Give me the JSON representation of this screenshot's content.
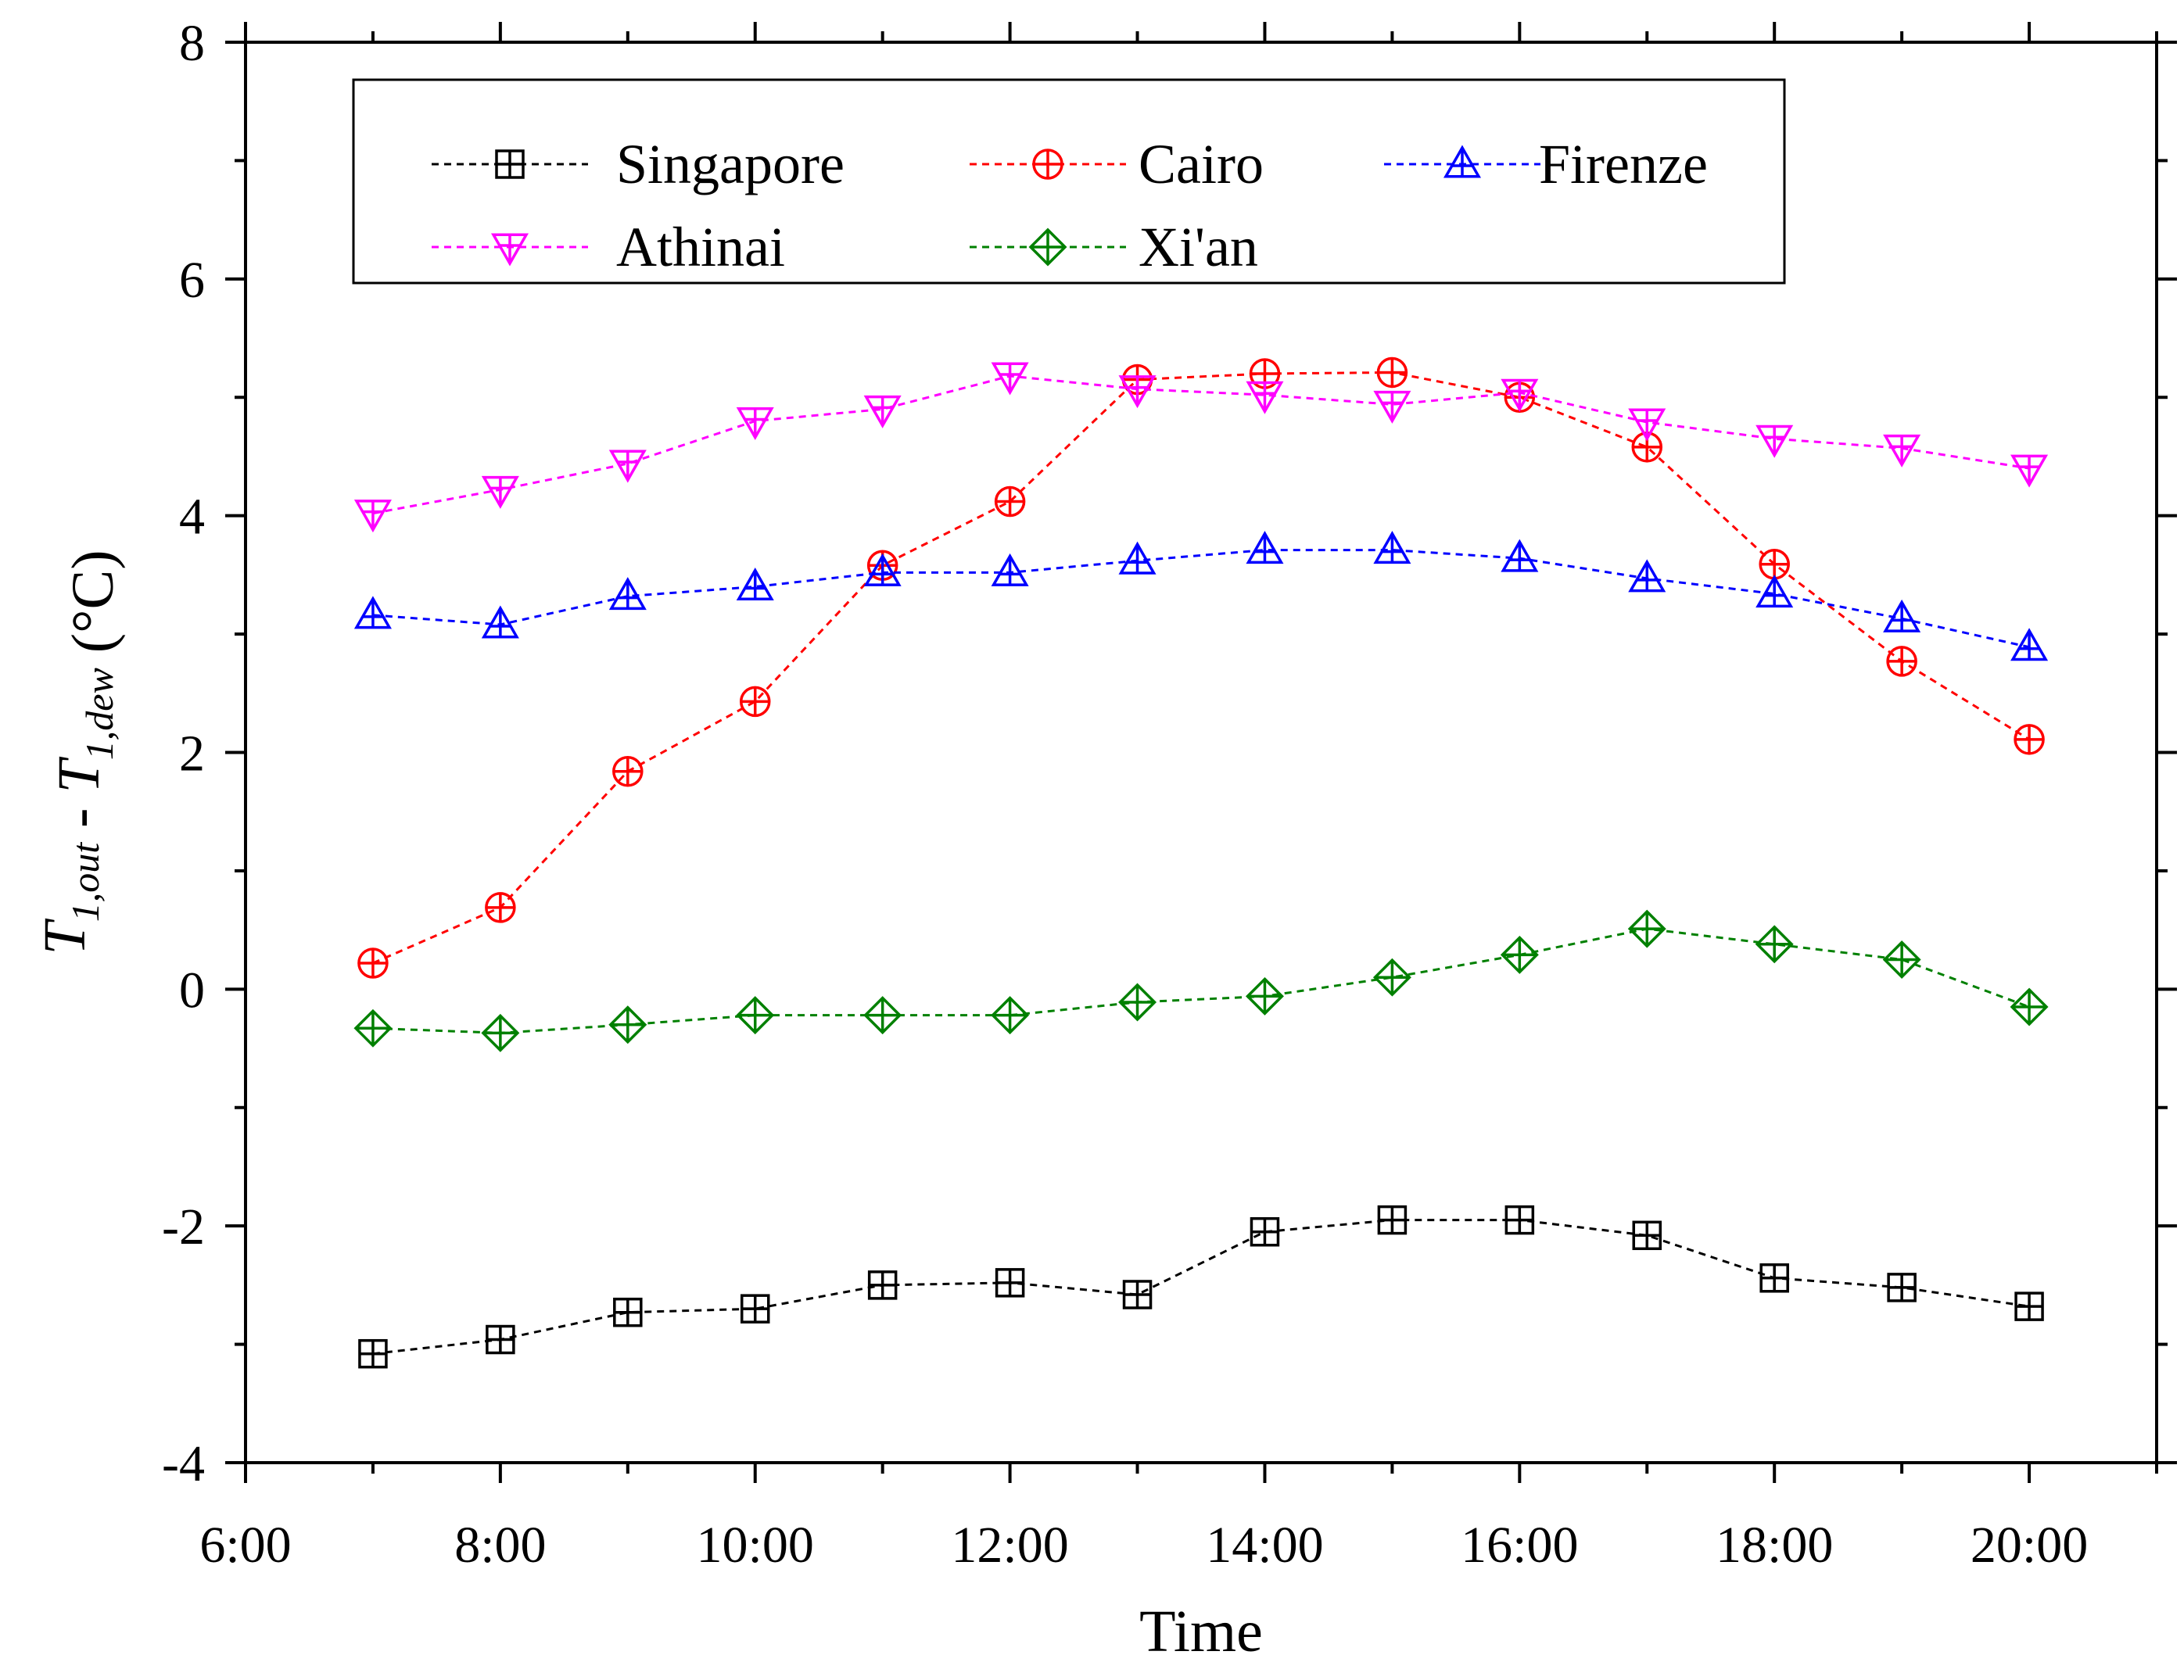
{
  "chart_data": {
    "type": "line",
    "title": "",
    "xlabel": "Time",
    "ylabel": {
      "parts": [
        {
          "text": "T",
          "italic": true
        },
        {
          "text": "1,out",
          "italic": true,
          "sub": true
        },
        {
          "text": " - ",
          "italic": false
        },
        {
          "text": "T",
          "italic": true
        },
        {
          "text": "1,dew",
          "italic": true,
          "sub": true
        },
        {
          "text": " (°C)",
          "italic": false
        }
      ]
    },
    "x": [
      7,
      8,
      9,
      10,
      11,
      12,
      13,
      14,
      15,
      16,
      17,
      18,
      19,
      20
    ],
    "xlim": [
      6,
      21
    ],
    "ylim": [
      -4,
      8
    ],
    "xticks": [
      {
        "value": 6,
        "label": "6:00"
      },
      {
        "value": 8,
        "label": "8:00"
      },
      {
        "value": 10,
        "label": "10:00"
      },
      {
        "value": 12,
        "label": "12:00"
      },
      {
        "value": 14,
        "label": "14:00"
      },
      {
        "value": 16,
        "label": "16:00"
      },
      {
        "value": 18,
        "label": "18:00"
      },
      {
        "value": 20,
        "label": "20:00"
      }
    ],
    "yticks": [
      {
        "value": -4,
        "label": "-4"
      },
      {
        "value": -2,
        "label": "-2"
      },
      {
        "value": 0,
        "label": "0"
      },
      {
        "value": 2,
        "label": "2"
      },
      {
        "value": 4,
        "label": "4"
      },
      {
        "value": 6,
        "label": "6"
      },
      {
        "value": 8,
        "label": "8"
      }
    ],
    "grid": false,
    "legend_position": "top",
    "series": [
      {
        "name": "Singapore",
        "color": "#000000",
        "marker": "square-plus",
        "values": [
          -3.08,
          -2.96,
          -2.73,
          -2.7,
          -2.5,
          -2.48,
          -2.58,
          -2.05,
          -1.95,
          -1.95,
          -2.08,
          -2.44,
          -2.52,
          -2.68
        ]
      },
      {
        "name": "Cairo",
        "color": "#ff0000",
        "marker": "circle-plus",
        "values": [
          0.22,
          0.69,
          1.84,
          2.43,
          3.58,
          4.12,
          5.15,
          5.2,
          5.21,
          5.0,
          4.58,
          3.59,
          2.77,
          2.11
        ]
      },
      {
        "name": "Firenze",
        "color": "#0000ff",
        "marker": "triangle-up",
        "values": [
          3.16,
          3.08,
          3.32,
          3.4,
          3.52,
          3.52,
          3.62,
          3.71,
          3.71,
          3.64,
          3.47,
          3.34,
          3.13,
          2.89
        ]
      },
      {
        "name": "Athinai",
        "color": "#ff00ff",
        "marker": "triangle-down",
        "values": [
          4.02,
          4.22,
          4.44,
          4.8,
          4.9,
          5.18,
          5.07,
          5.02,
          4.94,
          5.04,
          4.79,
          4.65,
          4.57,
          4.4
        ]
      },
      {
        "name": "Xi'an",
        "color": "#008000",
        "marker": "diamond-plus",
        "values": [
          -0.33,
          -0.37,
          -0.3,
          -0.22,
          -0.22,
          -0.22,
          -0.11,
          -0.06,
          0.1,
          0.29,
          0.51,
          0.38,
          0.25,
          -0.15
        ]
      }
    ]
  }
}
